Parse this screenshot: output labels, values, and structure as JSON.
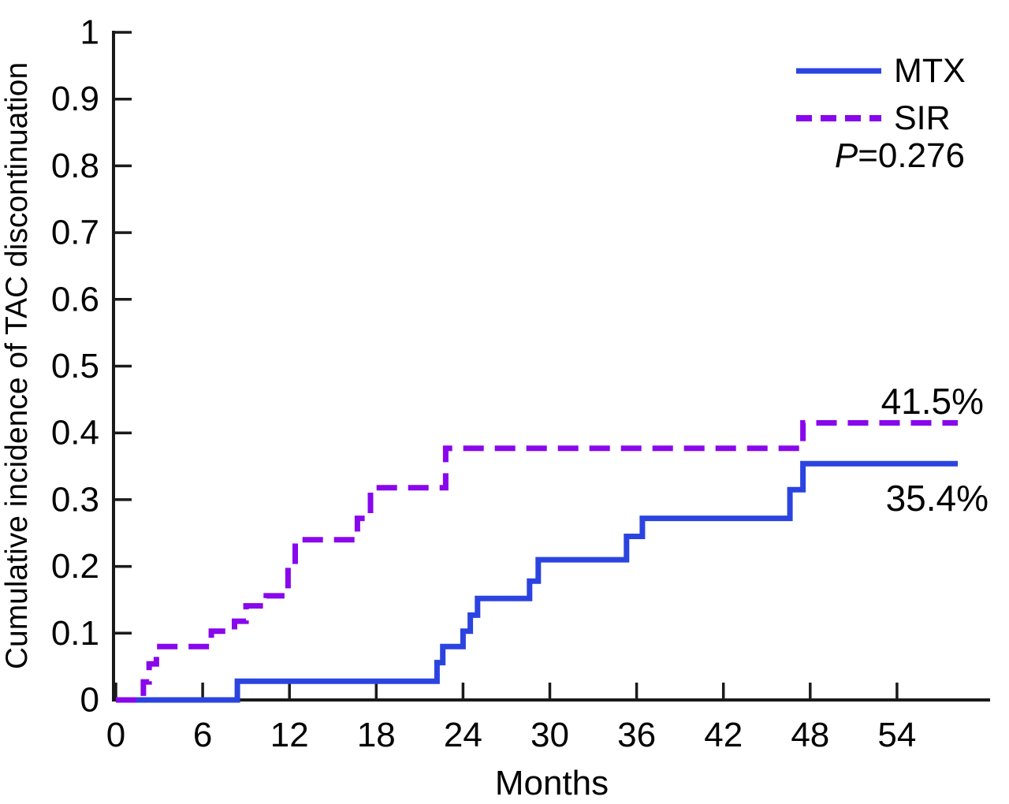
{
  "figure": {
    "background": "#ffffff",
    "text_color": "#000000",
    "axis_color": "#1a1a1a",
    "p_value": {
      "italic": "P",
      "rest": "=0.276"
    },
    "legend": [
      {
        "label": "MTX",
        "style": "solid"
      },
      {
        "label": "SIR",
        "style": "dashed"
      }
    ]
  },
  "chart_data": {
    "type": "line",
    "subtype": "step-kaplan-meier-cumulative-incidence",
    "title": "",
    "xlabel": "Months",
    "ylabel": "Cumulative incidence of TAC discontinuation",
    "xlim": [
      0,
      60.5
    ],
    "ylim": [
      0,
      1
    ],
    "grid": false,
    "legend_position": "top-right",
    "x_tick_values": [
      0,
      6,
      12,
      18,
      24,
      30,
      36,
      42,
      48,
      54
    ],
    "x_tick_labels": [
      "0",
      "6",
      "12",
      "18",
      "24",
      "30",
      "36",
      "42",
      "48",
      "54"
    ],
    "y_tick_values": [
      0,
      0.1,
      0.2,
      0.3,
      0.4,
      0.5,
      0.6,
      0.7,
      0.8,
      0.9,
      1
    ],
    "y_tick_labels": [
      "0",
      "0.1",
      "0.2",
      "0.3",
      "0.4",
      "0.5",
      "0.6",
      "0.7",
      "0.8",
      "0.9",
      "1"
    ],
    "series": [
      {
        "name": "MTX",
        "color": "#2b44e0",
        "dash": "solid",
        "final_label": "35.4%",
        "final_value": 0.354,
        "end_month": 58.2,
        "points": [
          [
            0,
            0
          ],
          [
            8.4,
            0.028
          ],
          [
            22.2,
            0.056
          ],
          [
            22.6,
            0.08
          ],
          [
            24.0,
            0.103
          ],
          [
            24.5,
            0.127
          ],
          [
            25.0,
            0.152
          ],
          [
            28.6,
            0.178
          ],
          [
            29.2,
            0.21
          ],
          [
            35.3,
            0.245
          ],
          [
            36.4,
            0.272
          ],
          [
            46.6,
            0.315
          ],
          [
            47.5,
            0.354
          ]
        ]
      },
      {
        "name": "SIR",
        "color": "#8807ec",
        "dash": "dashed",
        "final_label": "41.5%",
        "final_value": 0.415,
        "end_month": 58.2,
        "points": [
          [
            0,
            0
          ],
          [
            1.9,
            0.027
          ],
          [
            2.3,
            0.054
          ],
          [
            2.8,
            0.08
          ],
          [
            6.6,
            0.103
          ],
          [
            8.2,
            0.118
          ],
          [
            9.0,
            0.141
          ],
          [
            10.4,
            0.156
          ],
          [
            11.9,
            0.198
          ],
          [
            12.4,
            0.24
          ],
          [
            16.7,
            0.272
          ],
          [
            17.6,
            0.318
          ],
          [
            22.8,
            0.377
          ],
          [
            47.5,
            0.415
          ]
        ]
      }
    ],
    "annotations": [
      {
        "text": "41.5%",
        "series": "SIR"
      },
      {
        "text": "35.4%",
        "series": "MTX"
      }
    ]
  }
}
